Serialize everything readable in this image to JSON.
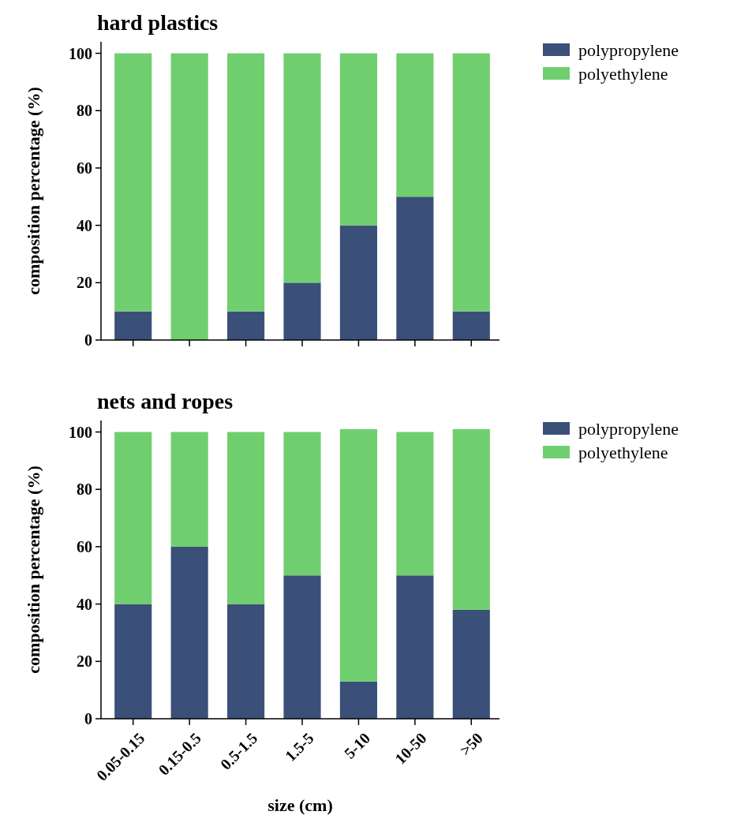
{
  "chart_data": [
    {
      "type": "bar",
      "title": "hard plastics",
      "ylabel": "composition percentage (%)",
      "categories": [
        null,
        null,
        null,
        null,
        null,
        null,
        null
      ],
      "stacked": true,
      "ylim": [
        0,
        104
      ],
      "yticks": [
        0,
        20,
        40,
        60,
        80,
        100
      ],
      "tick_labels": "y",
      "legend": "top right",
      "grid": false,
      "series": [
        {
          "name": "polypropylene",
          "color": "#3b5078",
          "values": [
            10,
            0,
            10,
            20,
            40,
            50,
            10
          ]
        },
        {
          "name": "polyethylene",
          "color": "#6fcf6f",
          "values": [
            90,
            100,
            90,
            80,
            60,
            50,
            90
          ]
        }
      ]
    },
    {
      "type": "bar",
      "title": "nets and ropes",
      "ylabel": "composition percentage (%)",
      "xlabel": "size (cm)",
      "categories": [
        "0.05-0.15",
        "0.15-0.5",
        "0.5-1.5",
        "1.5-5",
        "5-10",
        "10-50",
        ">50"
      ],
      "stacked": true,
      "ylim": [
        0,
        104
      ],
      "yticks": [
        0,
        20,
        40,
        60,
        80,
        100
      ],
      "legend": "top right",
      "grid": false,
      "series": [
        {
          "name": "polypropylene",
          "color": "#3b5078",
          "values": [
            40,
            60,
            40,
            50,
            13,
            50,
            38
          ]
        },
        {
          "name": "polyethylene",
          "color": "#6fcf6f",
          "values": [
            60,
            40,
            60,
            50,
            88,
            50,
            63
          ]
        }
      ]
    }
  ]
}
